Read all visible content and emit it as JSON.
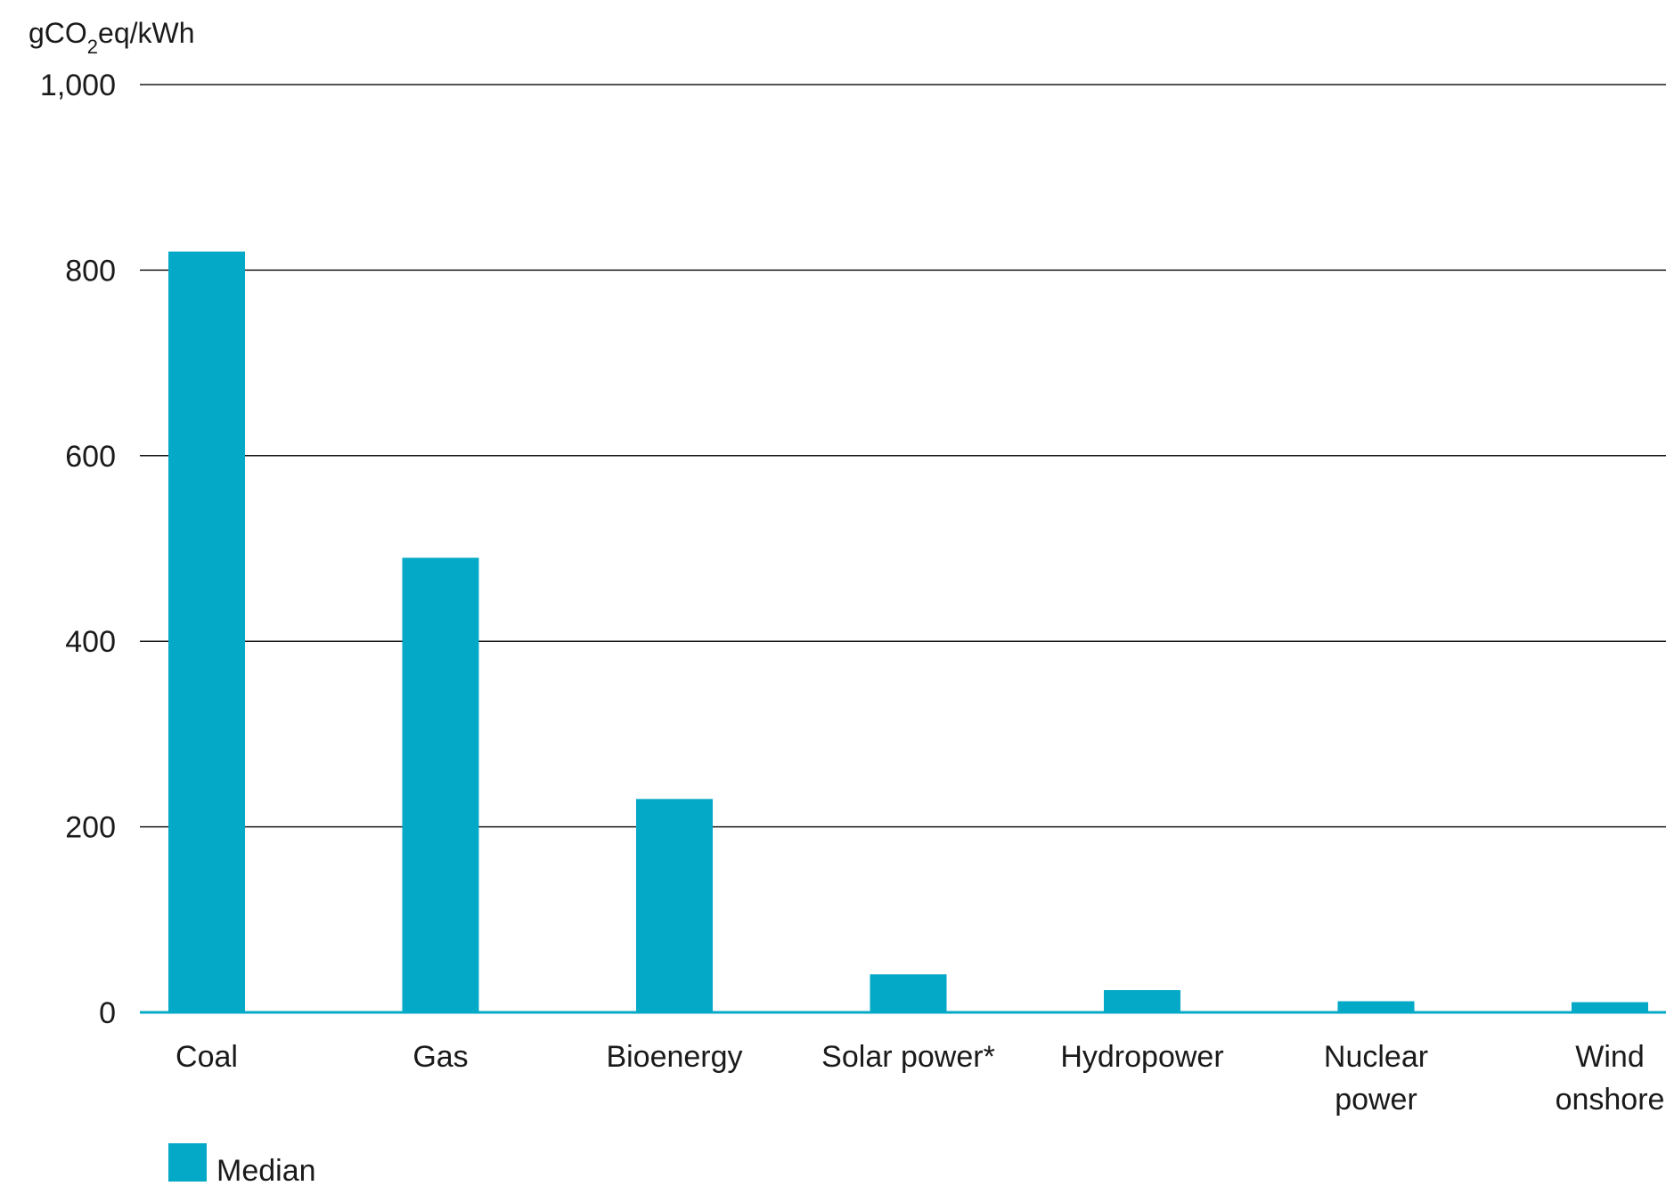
{
  "chart_data": {
    "type": "bar",
    "y_unit": {
      "main": "gCO",
      "sub": "2",
      "rest": "eq/kWh"
    },
    "categories": [
      [
        "Coal"
      ],
      [
        "Gas"
      ],
      [
        "Bioenergy"
      ],
      [
        "Solar power*"
      ],
      [
        "Hydropower"
      ],
      [
        "Nuclear",
        "power"
      ],
      [
        "Wind",
        "onshore"
      ]
    ],
    "series": [
      {
        "name": "Median",
        "values": [
          820,
          490,
          230,
          41,
          24,
          12,
          11
        ]
      }
    ],
    "ylim": [
      0,
      1000
    ],
    "yticks": [
      {
        "value": 0,
        "label": "0"
      },
      {
        "value": 200,
        "label": "200"
      },
      {
        "value": 400,
        "label": "400"
      },
      {
        "value": 600,
        "label": "600"
      },
      {
        "value": 800,
        "label": "800"
      },
      {
        "value": 1000,
        "label": "1,000"
      }
    ],
    "grid": true,
    "legend_position": "bottom-left",
    "bar_color": "#04a9c7",
    "axis_color": "#04a9c7",
    "grid_color": "#1a1a1a"
  }
}
